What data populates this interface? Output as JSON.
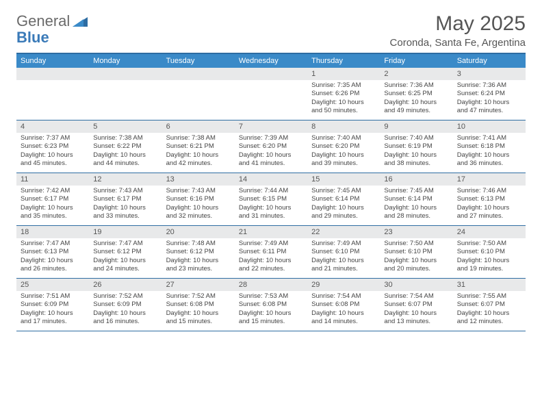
{
  "logo": {
    "text1": "General",
    "text2": "Blue"
  },
  "title": "May 2025",
  "location": "Coronda, Santa Fe, Argentina",
  "colors": {
    "header_bar": "#3a8ac8",
    "border": "#2d6ca2",
    "daynum_bg": "#e8e9ea",
    "text": "#555555"
  },
  "days_of_week": [
    "Sunday",
    "Monday",
    "Tuesday",
    "Wednesday",
    "Thursday",
    "Friday",
    "Saturday"
  ],
  "weeks": [
    [
      {
        "n": "",
        "sr": "",
        "ss": "",
        "dl": ""
      },
      {
        "n": "",
        "sr": "",
        "ss": "",
        "dl": ""
      },
      {
        "n": "",
        "sr": "",
        "ss": "",
        "dl": ""
      },
      {
        "n": "",
        "sr": "",
        "ss": "",
        "dl": ""
      },
      {
        "n": "1",
        "sr": "Sunrise: 7:35 AM",
        "ss": "Sunset: 6:26 PM",
        "dl": "Daylight: 10 hours and 50 minutes."
      },
      {
        "n": "2",
        "sr": "Sunrise: 7:36 AM",
        "ss": "Sunset: 6:25 PM",
        "dl": "Daylight: 10 hours and 49 minutes."
      },
      {
        "n": "3",
        "sr": "Sunrise: 7:36 AM",
        "ss": "Sunset: 6:24 PM",
        "dl": "Daylight: 10 hours and 47 minutes."
      }
    ],
    [
      {
        "n": "4",
        "sr": "Sunrise: 7:37 AM",
        "ss": "Sunset: 6:23 PM",
        "dl": "Daylight: 10 hours and 45 minutes."
      },
      {
        "n": "5",
        "sr": "Sunrise: 7:38 AM",
        "ss": "Sunset: 6:22 PM",
        "dl": "Daylight: 10 hours and 44 minutes."
      },
      {
        "n": "6",
        "sr": "Sunrise: 7:38 AM",
        "ss": "Sunset: 6:21 PM",
        "dl": "Daylight: 10 hours and 42 minutes."
      },
      {
        "n": "7",
        "sr": "Sunrise: 7:39 AM",
        "ss": "Sunset: 6:20 PM",
        "dl": "Daylight: 10 hours and 41 minutes."
      },
      {
        "n": "8",
        "sr": "Sunrise: 7:40 AM",
        "ss": "Sunset: 6:20 PM",
        "dl": "Daylight: 10 hours and 39 minutes."
      },
      {
        "n": "9",
        "sr": "Sunrise: 7:40 AM",
        "ss": "Sunset: 6:19 PM",
        "dl": "Daylight: 10 hours and 38 minutes."
      },
      {
        "n": "10",
        "sr": "Sunrise: 7:41 AM",
        "ss": "Sunset: 6:18 PM",
        "dl": "Daylight: 10 hours and 36 minutes."
      }
    ],
    [
      {
        "n": "11",
        "sr": "Sunrise: 7:42 AM",
        "ss": "Sunset: 6:17 PM",
        "dl": "Daylight: 10 hours and 35 minutes."
      },
      {
        "n": "12",
        "sr": "Sunrise: 7:43 AM",
        "ss": "Sunset: 6:17 PM",
        "dl": "Daylight: 10 hours and 33 minutes."
      },
      {
        "n": "13",
        "sr": "Sunrise: 7:43 AM",
        "ss": "Sunset: 6:16 PM",
        "dl": "Daylight: 10 hours and 32 minutes."
      },
      {
        "n": "14",
        "sr": "Sunrise: 7:44 AM",
        "ss": "Sunset: 6:15 PM",
        "dl": "Daylight: 10 hours and 31 minutes."
      },
      {
        "n": "15",
        "sr": "Sunrise: 7:45 AM",
        "ss": "Sunset: 6:14 PM",
        "dl": "Daylight: 10 hours and 29 minutes."
      },
      {
        "n": "16",
        "sr": "Sunrise: 7:45 AM",
        "ss": "Sunset: 6:14 PM",
        "dl": "Daylight: 10 hours and 28 minutes."
      },
      {
        "n": "17",
        "sr": "Sunrise: 7:46 AM",
        "ss": "Sunset: 6:13 PM",
        "dl": "Daylight: 10 hours and 27 minutes."
      }
    ],
    [
      {
        "n": "18",
        "sr": "Sunrise: 7:47 AM",
        "ss": "Sunset: 6:13 PM",
        "dl": "Daylight: 10 hours and 26 minutes."
      },
      {
        "n": "19",
        "sr": "Sunrise: 7:47 AM",
        "ss": "Sunset: 6:12 PM",
        "dl": "Daylight: 10 hours and 24 minutes."
      },
      {
        "n": "20",
        "sr": "Sunrise: 7:48 AM",
        "ss": "Sunset: 6:12 PM",
        "dl": "Daylight: 10 hours and 23 minutes."
      },
      {
        "n": "21",
        "sr": "Sunrise: 7:49 AM",
        "ss": "Sunset: 6:11 PM",
        "dl": "Daylight: 10 hours and 22 minutes."
      },
      {
        "n": "22",
        "sr": "Sunrise: 7:49 AM",
        "ss": "Sunset: 6:10 PM",
        "dl": "Daylight: 10 hours and 21 minutes."
      },
      {
        "n": "23",
        "sr": "Sunrise: 7:50 AM",
        "ss": "Sunset: 6:10 PM",
        "dl": "Daylight: 10 hours and 20 minutes."
      },
      {
        "n": "24",
        "sr": "Sunrise: 7:50 AM",
        "ss": "Sunset: 6:10 PM",
        "dl": "Daylight: 10 hours and 19 minutes."
      }
    ],
    [
      {
        "n": "25",
        "sr": "Sunrise: 7:51 AM",
        "ss": "Sunset: 6:09 PM",
        "dl": "Daylight: 10 hours and 17 minutes."
      },
      {
        "n": "26",
        "sr": "Sunrise: 7:52 AM",
        "ss": "Sunset: 6:09 PM",
        "dl": "Daylight: 10 hours and 16 minutes."
      },
      {
        "n": "27",
        "sr": "Sunrise: 7:52 AM",
        "ss": "Sunset: 6:08 PM",
        "dl": "Daylight: 10 hours and 15 minutes."
      },
      {
        "n": "28",
        "sr": "Sunrise: 7:53 AM",
        "ss": "Sunset: 6:08 PM",
        "dl": "Daylight: 10 hours and 15 minutes."
      },
      {
        "n": "29",
        "sr": "Sunrise: 7:54 AM",
        "ss": "Sunset: 6:08 PM",
        "dl": "Daylight: 10 hours and 14 minutes."
      },
      {
        "n": "30",
        "sr": "Sunrise: 7:54 AM",
        "ss": "Sunset: 6:07 PM",
        "dl": "Daylight: 10 hours and 13 minutes."
      },
      {
        "n": "31",
        "sr": "Sunrise: 7:55 AM",
        "ss": "Sunset: 6:07 PM",
        "dl": "Daylight: 10 hours and 12 minutes."
      }
    ]
  ]
}
